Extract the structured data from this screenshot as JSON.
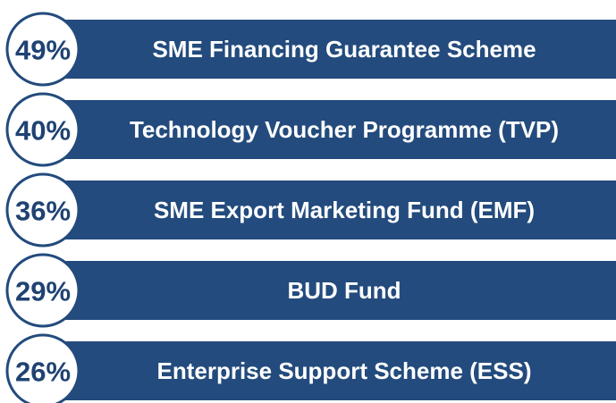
{
  "items": [
    {
      "percent": "49%",
      "label": "SME Financing Guarantee Scheme"
    },
    {
      "percent": "40%",
      "label": "Technology Voucher Programme (TVP)"
    },
    {
      "percent": "36%",
      "label": "SME Export Marketing Fund (EMF)"
    },
    {
      "percent": "29%",
      "label": "BUD Fund"
    },
    {
      "percent": "26%",
      "label": "Enterprise Support Scheme (ESS)"
    }
  ]
}
